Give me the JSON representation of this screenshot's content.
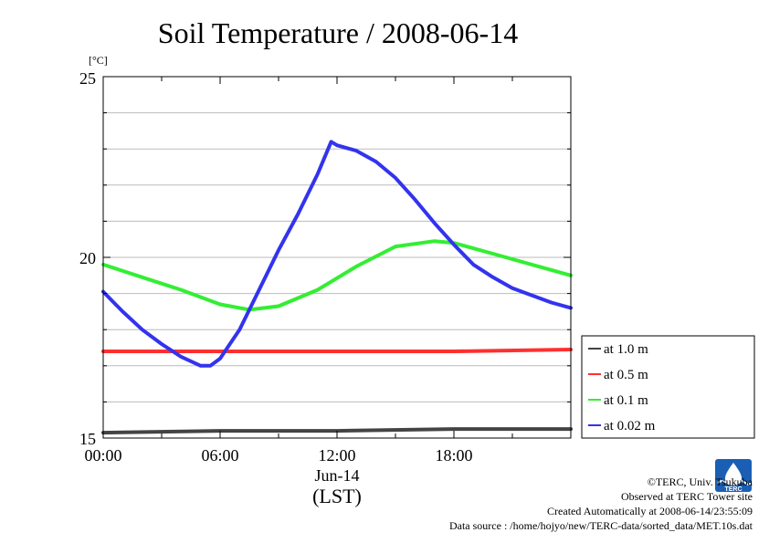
{
  "title": "Soil Temperature / 2008-06-14",
  "units_label": "[°C]",
  "x_ticks": [
    "00:00",
    "06:00",
    "12:00",
    "18:00"
  ],
  "x_date_label": "Jun-14",
  "x_tz_label": "(LST)",
  "y_ticks": [
    "15",
    "20",
    "25"
  ],
  "footer": {
    "copyright": "©TERC, Univ. Tsukuba",
    "observed": "Observed at TERC Tower site",
    "created": "Created Automatically at 2008-06-14/23:55:09",
    "source": "Data source : /home/hojyo/new/TERC-data/sorted_data/MET.10s.dat"
  },
  "logo": {
    "text": "TERC",
    "color": "#1a5fb4"
  },
  "chart_data": {
    "type": "line",
    "title": "Soil Temperature / 2008-06-14",
    "ylabel": "[°C]",
    "xlabel": "Jun-14 (LST)",
    "xlim": [
      0,
      24
    ],
    "ylim": [
      15,
      25
    ],
    "grid": true,
    "legend_position": "right",
    "series": [
      {
        "name": "at 1.0 m",
        "color": "#444444",
        "x": [
          0,
          6,
          12,
          18,
          24
        ],
        "y": [
          15.15,
          15.2,
          15.2,
          15.25,
          15.25
        ]
      },
      {
        "name": "at 0.5 m",
        "color": "#ff3030",
        "x": [
          0,
          6,
          12,
          18,
          24
        ],
        "y": [
          17.4,
          17.4,
          17.4,
          17.4,
          17.45
        ]
      },
      {
        "name": "at 0.1 m",
        "color": "#33ee33",
        "x": [
          0,
          2,
          4,
          6,
          7.5,
          9,
          11,
          13,
          15,
          17,
          18,
          20,
          22,
          24
        ],
        "y": [
          19.8,
          19.45,
          19.1,
          18.7,
          18.55,
          18.65,
          19.1,
          19.75,
          20.3,
          20.45,
          20.4,
          20.1,
          19.8,
          19.5
        ]
      },
      {
        "name": "at 0.02 m",
        "color": "#3333ee",
        "x": [
          0,
          1,
          2,
          3,
          4,
          5,
          5.5,
          6,
          7,
          8,
          9,
          10,
          11,
          11.7,
          12,
          13,
          14,
          15,
          16,
          17,
          18,
          19,
          20,
          21,
          22,
          23,
          24
        ],
        "y": [
          19.05,
          18.5,
          18.0,
          17.6,
          17.25,
          17.0,
          17.0,
          17.2,
          18.0,
          19.1,
          20.2,
          21.2,
          22.3,
          23.2,
          23.1,
          22.95,
          22.65,
          22.2,
          21.6,
          20.95,
          20.35,
          19.8,
          19.45,
          19.15,
          18.95,
          18.75,
          18.6
        ]
      }
    ]
  }
}
